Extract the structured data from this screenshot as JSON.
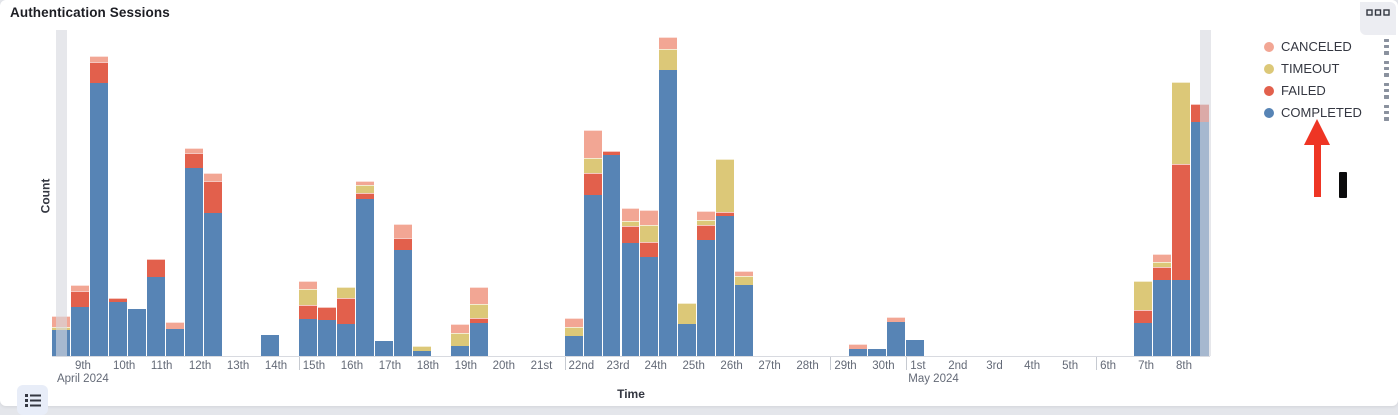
{
  "panel": {
    "title": "Authentication Sessions",
    "options_icon": "boxes-horizontal-icon",
    "legend_toggle_icon": "list-icon"
  },
  "chart_data": {
    "type": "bar",
    "stacked": true,
    "title": "Authentication Sessions",
    "xlabel": "Time",
    "ylabel": "Count",
    "x_range": "April 8 2024 - May 8 2024, 12-hour buckets",
    "ylim": [
      0,
      330
    ],
    "y_axis_tick_labels": "none shown (relative units estimated from pixel heights)",
    "grid": "off",
    "legend_position": "right",
    "stack_order_bottom_to_top": [
      "COMPLETED",
      "FAILED",
      "TIMEOUT",
      "CANCELED"
    ],
    "legend": [
      {
        "label": "CANCELED",
        "color": "#F2A694"
      },
      {
        "label": "TIMEOUT",
        "color": "#DCC878"
      },
      {
        "label": "FAILED",
        "color": "#E2604C"
      },
      {
        "label": "COMPLETED",
        "color": "#5784B5"
      }
    ],
    "partial_bucket_band_color": "#D6D8DF",
    "buckets": [
      {
        "slot": 0,
        "label": "Apr 8 PM",
        "completed": 26,
        "timeout": 3,
        "canceled": 12,
        "partial": true
      },
      {
        "slot": 1,
        "label": "Apr 9 AM",
        "completed": 50,
        "failed": 16,
        "canceled": 6
      },
      {
        "slot": 2,
        "label": "Apr 9 PM",
        "completed": 276,
        "failed": 22,
        "canceled": 6
      },
      {
        "slot": 3,
        "label": "Apr 10 AM",
        "completed": 55,
        "failed": 4
      },
      {
        "slot": 4,
        "label": "Apr 10 PM",
        "completed": 48
      },
      {
        "slot": 5,
        "label": "Apr 11 AM",
        "completed": 80,
        "failed": 18
      },
      {
        "slot": 6,
        "label": "Apr 11 PM",
        "completed": 27,
        "canceled": 7
      },
      {
        "slot": 7,
        "label": "Apr 12 AM",
        "completed": 190,
        "failed": 16,
        "canceled": 5
      },
      {
        "slot": 8,
        "label": "Apr 12 PM",
        "completed": 145,
        "failed": 32,
        "canceled": 8
      },
      {
        "slot": 11,
        "label": "Apr 14 AM",
        "completed": 21
      },
      {
        "slot": 13,
        "label": "Apr 15 AM",
        "completed": 37,
        "failed": 15,
        "timeout": 16,
        "canceled": 8
      },
      {
        "slot": 14,
        "label": "Apr 15 PM",
        "completed": 36,
        "failed": 14
      },
      {
        "slot": 15,
        "label": "Apr 16 AM",
        "completed": 32,
        "failed": 27,
        "timeout": 11
      },
      {
        "slot": 16,
        "label": "Apr 16 PM",
        "completed": 159,
        "failed": 6,
        "timeout": 8,
        "canceled": 4
      },
      {
        "slot": 17,
        "label": "Apr 17 AM",
        "completed": 15
      },
      {
        "slot": 18,
        "label": "Apr 17 PM",
        "completed": 107,
        "failed": 12,
        "canceled": 15
      },
      {
        "slot": 19,
        "label": "Apr 18 AM",
        "completed": 5,
        "timeout": 5
      },
      {
        "slot": 21,
        "label": "Apr 19 AM",
        "completed": 10,
        "timeout": 13,
        "canceled": 9
      },
      {
        "slot": 22,
        "label": "Apr 19 PM",
        "completed": 33,
        "failed": 5,
        "timeout": 15,
        "canceled": 17
      },
      {
        "slot": 27,
        "label": "Apr 22 AM",
        "completed": 20,
        "timeout": 9,
        "canceled": 9
      },
      {
        "slot": 28,
        "label": "Apr 22 PM",
        "completed": 163,
        "failed": 22,
        "timeout": 15,
        "canceled": 29
      },
      {
        "slot": 29,
        "label": "Apr 23 AM",
        "completed": 203,
        "failed": 5
      },
      {
        "slot": 30,
        "label": "Apr 23 PM",
        "completed": 114,
        "failed": 18,
        "timeout": 5,
        "canceled": 13
      },
      {
        "slot": 31,
        "label": "Apr 24 AM",
        "completed": 100,
        "failed": 15,
        "timeout": 18,
        "canceled": 15
      },
      {
        "slot": 32,
        "label": "Apr 24 PM",
        "completed": 290,
        "timeout": 21,
        "canceled": 12
      },
      {
        "slot": 33,
        "label": "Apr 25 AM",
        "completed": 32,
        "timeout": 22
      },
      {
        "slot": 34,
        "label": "Apr 25 PM",
        "completed": 117,
        "failed": 16,
        "timeout": 5,
        "canceled": 9
      },
      {
        "slot": 35,
        "label": "Apr 26 AM",
        "completed": 142,
        "failed": 4,
        "timeout": 53
      },
      {
        "slot": 36,
        "label": "Apr 26 PM",
        "completed": 72,
        "timeout": 9,
        "canceled": 5
      },
      {
        "slot": 42,
        "label": "Apr 29 PM",
        "completed": 7,
        "canceled": 5
      },
      {
        "slot": 43,
        "label": "Apr 30 AM",
        "completed": 7
      },
      {
        "slot": 44,
        "label": "Apr 30 PM",
        "completed": 34,
        "canceled": 5
      },
      {
        "slot": 45,
        "label": "May 1 AM",
        "completed": 16
      },
      {
        "slot": 57,
        "label": "May 7 AM",
        "completed": 33,
        "failed": 14,
        "timeout": 29
      },
      {
        "slot": 58,
        "label": "May 7 PM",
        "completed": 77,
        "failed": 13,
        "timeout": 5,
        "canceled": 8
      },
      {
        "slot": 59,
        "label": "May 8 AM",
        "completed": 77,
        "failed": 117,
        "timeout": 83
      },
      {
        "slot": 60,
        "label": "May 8 PM",
        "completed": 237,
        "failed": 18,
        "partial": true
      }
    ],
    "x_ticks": [
      {
        "slot": 1,
        "label": "9th",
        "sub": "April 2024"
      },
      {
        "slot": 3,
        "label": "10th"
      },
      {
        "slot": 5,
        "label": "11th"
      },
      {
        "slot": 7,
        "label": "12th"
      },
      {
        "slot": 9,
        "label": "13th"
      },
      {
        "slot": 11,
        "label": "14th"
      },
      {
        "slot": 13,
        "label": "15th",
        "line": true
      },
      {
        "slot": 15,
        "label": "16th"
      },
      {
        "slot": 17,
        "label": "17th"
      },
      {
        "slot": 19,
        "label": "18th"
      },
      {
        "slot": 21,
        "label": "19th"
      },
      {
        "slot": 23,
        "label": "20th"
      },
      {
        "slot": 25,
        "label": "21st"
      },
      {
        "slot": 27,
        "label": "22nd",
        "line": true
      },
      {
        "slot": 29,
        "label": "23rd"
      },
      {
        "slot": 31,
        "label": "24th"
      },
      {
        "slot": 33,
        "label": "25th"
      },
      {
        "slot": 35,
        "label": "26th"
      },
      {
        "slot": 37,
        "label": "27th"
      },
      {
        "slot": 39,
        "label": "28th"
      },
      {
        "slot": 41,
        "label": "29th",
        "line": true
      },
      {
        "slot": 43,
        "label": "30th"
      },
      {
        "slot": 45,
        "label": "1st",
        "sub": "May 2024",
        "line": true
      },
      {
        "slot": 47,
        "label": "2nd"
      },
      {
        "slot": 49,
        "label": "3rd"
      },
      {
        "slot": 51,
        "label": "4th"
      },
      {
        "slot": 53,
        "label": "5th"
      },
      {
        "slot": 55,
        "label": "6th",
        "line": true
      },
      {
        "slot": 57,
        "label": "7th"
      },
      {
        "slot": 59,
        "label": "8th"
      }
    ]
  },
  "annotation": {
    "arrow_color": "#EE3524",
    "arrow_points_to": "COMPLETED legend item",
    "cursor_bar_color": "#0B0B0C"
  }
}
